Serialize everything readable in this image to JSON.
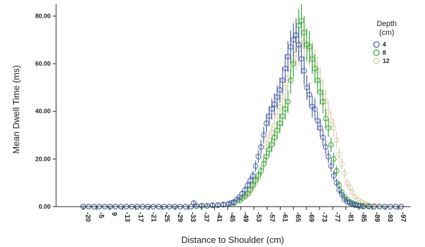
{
  "chart_data": {
    "type": "scatter",
    "title": "",
    "xlabel": "Distance to Shoulder (cm)",
    "ylabel": "Mean Dwell Time (ms)",
    "x_ticks": [
      "-20",
      "-5",
      "9",
      "-13",
      "-17",
      "-21",
      "-25",
      "-29",
      "-33",
      "-37",
      "-41",
      "-45",
      "-49",
      "-53",
      "-57",
      "-61",
      "-65",
      "-69",
      "-73",
      "-77",
      "-81",
      "-85",
      "-89",
      "-93",
      "-97"
    ],
    "y_ticks": [
      "0.00",
      "20.00",
      "40.00",
      "60.00",
      "80.00"
    ],
    "y_tick_values": [
      0,
      20,
      40,
      60,
      80
    ],
    "ylim": [
      0,
      85
    ],
    "x_range": [
      -25,
      99
    ],
    "grid": false,
    "legend_position": "top-right",
    "legend_title_lines": [
      "Depth",
      "(cm)"
    ],
    "error_bars": true,
    "series": [
      {
        "name": "4",
        "color": "#4a5faa",
        "peak": 72,
        "mu": 59,
        "sigma": 7.5,
        "points": [
          [
            -20,
            0
          ],
          [
            -18,
            0
          ],
          [
            -16,
            0
          ],
          [
            -14,
            0
          ],
          [
            -12,
            0
          ],
          [
            -10,
            0
          ],
          [
            -8,
            0
          ],
          [
            -6,
            0
          ],
          [
            -4,
            0
          ],
          [
            -2,
            0
          ],
          [
            0,
            0
          ],
          [
            2,
            0
          ],
          [
            4,
            0
          ],
          [
            6,
            0
          ],
          [
            8,
            0
          ],
          [
            10,
            0
          ],
          [
            12,
            0
          ],
          [
            14,
            0
          ],
          [
            16,
            0
          ],
          [
            18,
            0
          ],
          [
            20,
            0
          ],
          [
            21,
            1.5
          ],
          [
            22,
            0.3
          ],
          [
            24,
            0.4
          ],
          [
            26,
            0.3
          ],
          [
            28,
            0.6
          ],
          [
            30,
            0.6
          ],
          [
            32,
            0.9
          ],
          [
            34,
            1.2
          ],
          [
            35,
            1.6
          ],
          [
            36,
            2
          ],
          [
            37,
            3
          ],
          [
            38,
            4
          ],
          [
            39,
            5.5
          ],
          [
            40,
            7
          ],
          [
            41,
            9
          ],
          [
            42,
            11
          ],
          [
            43,
            13
          ],
          [
            44,
            17
          ],
          [
            45,
            21
          ],
          [
            46,
            25
          ],
          [
            47,
            30
          ],
          [
            48,
            35
          ],
          [
            49,
            38
          ],
          [
            50,
            41
          ],
          [
            51,
            43
          ],
          [
            52,
            46
          ],
          [
            53,
            49
          ],
          [
            54,
            53
          ],
          [
            55,
            58
          ],
          [
            56,
            63
          ],
          [
            57,
            67
          ],
          [
            58,
            70
          ],
          [
            59,
            72
          ],
          [
            60,
            68
          ],
          [
            61,
            62
          ],
          [
            62,
            57
          ],
          [
            63,
            50
          ],
          [
            64,
            47
          ],
          [
            65,
            42
          ],
          [
            66,
            41
          ],
          [
            67,
            36
          ],
          [
            68,
            33
          ],
          [
            69,
            29
          ],
          [
            70,
            25
          ],
          [
            71,
            21
          ],
          [
            72,
            17
          ],
          [
            73,
            13
          ],
          [
            74,
            10
          ],
          [
            75,
            7
          ],
          [
            76,
            5
          ],
          [
            77,
            3
          ],
          [
            78,
            2
          ],
          [
            79,
            1.5
          ],
          [
            80,
            1
          ],
          [
            81,
            0.6
          ],
          [
            82,
            0.4
          ],
          [
            83,
            0.3
          ],
          [
            84,
            0
          ],
          [
            86,
            0
          ],
          [
            88,
            0
          ],
          [
            90,
            0
          ],
          [
            92,
            0
          ],
          [
            94,
            0
          ],
          [
            96,
            0
          ],
          [
            98,
            0
          ]
        ]
      },
      {
        "name": "8",
        "color": "#3aaa3a",
        "peak": 78,
        "mu": 61,
        "sigma": 7.5,
        "points": [
          [
            -20,
            0
          ],
          [
            -18,
            0
          ],
          [
            -16,
            0
          ],
          [
            -14,
            0
          ],
          [
            -12,
            0
          ],
          [
            -10,
            0
          ],
          [
            -8,
            0
          ],
          [
            -6,
            0
          ],
          [
            -4,
            0
          ],
          [
            -2,
            0
          ],
          [
            0,
            0
          ],
          [
            2,
            0
          ],
          [
            4,
            0
          ],
          [
            6,
            0
          ],
          [
            8,
            0
          ],
          [
            10,
            0
          ],
          [
            12,
            0
          ],
          [
            14,
            0
          ],
          [
            16,
            0
          ],
          [
            18,
            0
          ],
          [
            20,
            0
          ],
          [
            22,
            0.2
          ],
          [
            24,
            0.3
          ],
          [
            26,
            0.3
          ],
          [
            28,
            0.5
          ],
          [
            30,
            0.6
          ],
          [
            32,
            0.8
          ],
          [
            34,
            1
          ],
          [
            36,
            1.5
          ],
          [
            38,
            2.5
          ],
          [
            39,
            3.5
          ],
          [
            40,
            4.5
          ],
          [
            41,
            5.5
          ],
          [
            42,
            7
          ],
          [
            43,
            9
          ],
          [
            44,
            11
          ],
          [
            45,
            13
          ],
          [
            46,
            15
          ],
          [
            47,
            18
          ],
          [
            48,
            21
          ],
          [
            49,
            24
          ],
          [
            50,
            26
          ],
          [
            51,
            29
          ],
          [
            52,
            32
          ],
          [
            53,
            35
          ],
          [
            54,
            38
          ],
          [
            55,
            41
          ],
          [
            56,
            44
          ],
          [
            57,
            53
          ],
          [
            58,
            60
          ],
          [
            59,
            72
          ],
          [
            60,
            76
          ],
          [
            61,
            78
          ],
          [
            62,
            73
          ],
          [
            63,
            68
          ],
          [
            64,
            67
          ],
          [
            65,
            62
          ],
          [
            66,
            58
          ],
          [
            67,
            53
          ],
          [
            68,
            48
          ],
          [
            69,
            44
          ],
          [
            70,
            37
          ],
          [
            71,
            33
          ],
          [
            72,
            26
          ],
          [
            73,
            20
          ],
          [
            74,
            15
          ],
          [
            75,
            9
          ],
          [
            76,
            6
          ],
          [
            77,
            4
          ],
          [
            78,
            3
          ],
          [
            79,
            2
          ],
          [
            80,
            1.5
          ],
          [
            81,
            1
          ],
          [
            82,
            0.6
          ],
          [
            83,
            0.4
          ],
          [
            84,
            0.3
          ],
          [
            86,
            0.2
          ],
          [
            88,
            0
          ],
          [
            90,
            0
          ],
          [
            92,
            0
          ],
          [
            94,
            0
          ],
          [
            96,
            0
          ],
          [
            98,
            0
          ]
        ]
      },
      {
        "name": "12",
        "color": "#d8ccab",
        "peak": 69,
        "mu": 63,
        "sigma": 8,
        "points": [
          [
            -20,
            0
          ],
          [
            -18,
            0
          ],
          [
            -16,
            0
          ],
          [
            -14,
            0
          ],
          [
            -12,
            0
          ],
          [
            -10,
            0
          ],
          [
            -8,
            0
          ],
          [
            -6,
            0
          ],
          [
            -4,
            0
          ],
          [
            -2,
            0
          ],
          [
            0,
            0
          ],
          [
            2,
            0
          ],
          [
            4,
            0
          ],
          [
            6,
            0
          ],
          [
            8,
            0
          ],
          [
            10,
            0
          ],
          [
            12,
            0
          ],
          [
            14,
            0
          ],
          [
            16,
            0
          ],
          [
            18,
            0
          ],
          [
            20,
            0
          ],
          [
            22,
            0.2
          ],
          [
            24,
            0.3
          ],
          [
            26,
            0.4
          ],
          [
            28,
            0.6
          ],
          [
            30,
            0.8
          ],
          [
            32,
            1
          ],
          [
            34,
            1.3
          ],
          [
            36,
            1.8
          ],
          [
            38,
            3
          ],
          [
            40,
            4
          ],
          [
            41,
            5
          ],
          [
            42,
            6
          ],
          [
            43,
            8
          ],
          [
            44,
            10
          ],
          [
            45,
            12
          ],
          [
            46,
            15
          ],
          [
            47,
            20
          ],
          [
            48,
            25
          ],
          [
            49,
            28
          ],
          [
            50,
            31
          ],
          [
            51,
            34
          ],
          [
            52,
            38
          ],
          [
            53,
            42
          ],
          [
            54,
            46
          ],
          [
            55,
            50
          ],
          [
            56,
            54
          ],
          [
            57,
            58
          ],
          [
            58,
            61
          ],
          [
            59,
            64
          ],
          [
            60,
            66
          ],
          [
            61,
            68
          ],
          [
            62,
            69
          ],
          [
            63,
            68
          ],
          [
            64,
            66
          ],
          [
            65,
            63
          ],
          [
            66,
            60
          ],
          [
            67,
            57
          ],
          [
            68,
            53
          ],
          [
            69,
            48
          ],
          [
            70,
            44
          ],
          [
            71,
            40
          ],
          [
            72,
            36
          ],
          [
            73,
            33
          ],
          [
            74,
            28
          ],
          [
            75,
            22
          ],
          [
            76,
            18
          ],
          [
            77,
            14
          ],
          [
            78,
            10
          ],
          [
            79,
            8
          ],
          [
            80,
            6
          ],
          [
            81,
            4
          ],
          [
            82,
            3
          ],
          [
            83,
            2
          ],
          [
            84,
            1.5
          ],
          [
            85,
            1
          ],
          [
            86,
            0.6
          ],
          [
            88,
            0.4
          ],
          [
            90,
            0.2
          ],
          [
            92,
            0
          ],
          [
            94,
            0
          ],
          [
            96,
            0
          ],
          [
            98,
            0
          ]
        ]
      }
    ]
  }
}
